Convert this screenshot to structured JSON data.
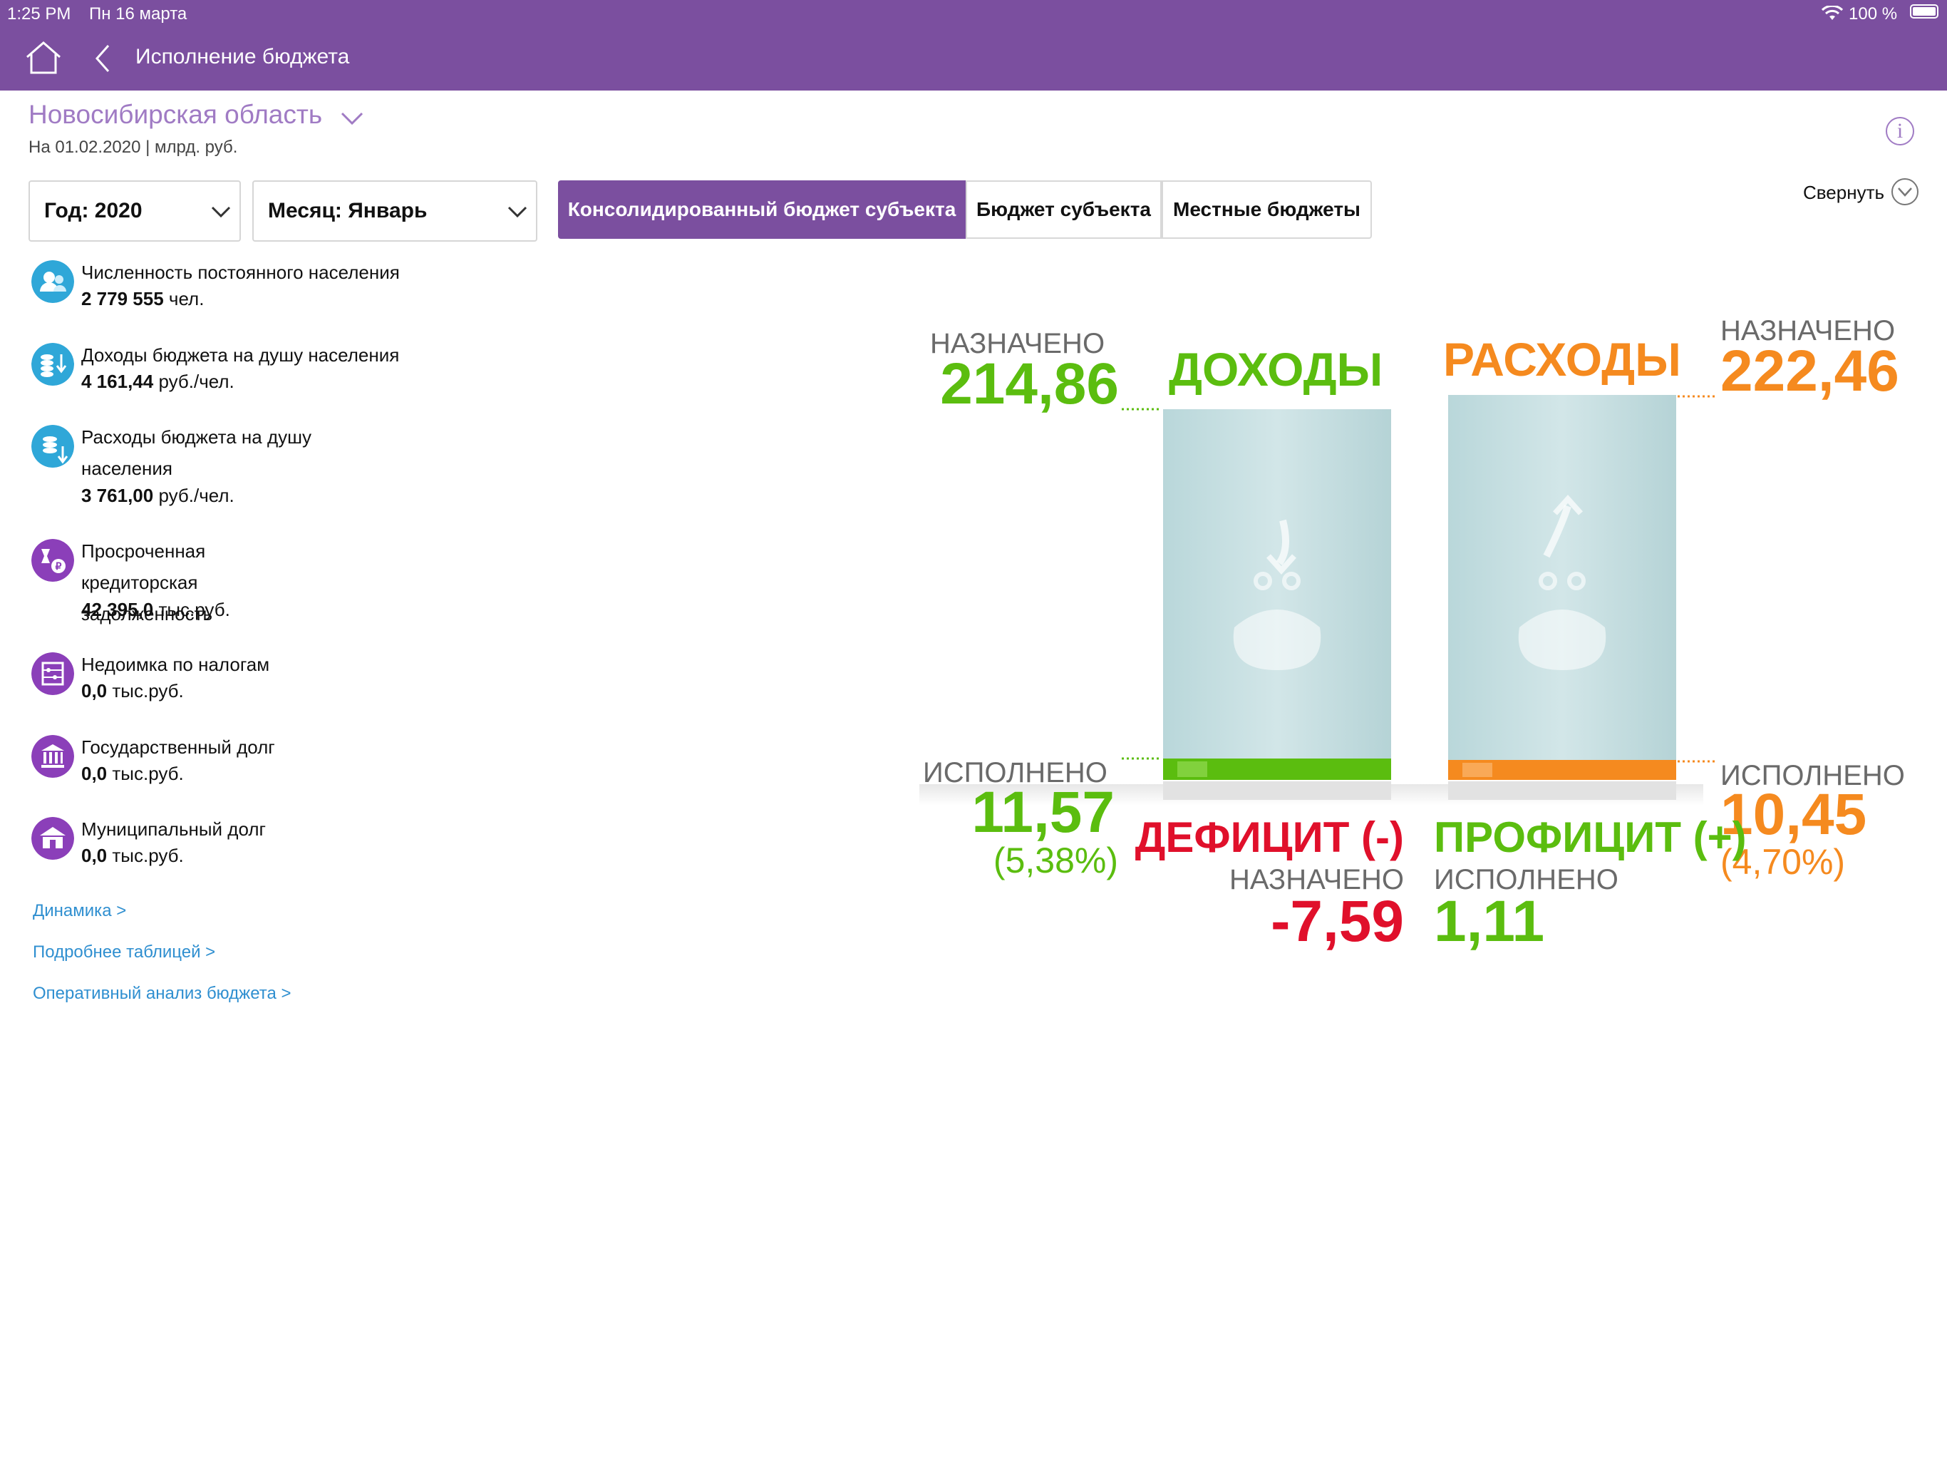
{
  "status_bar": {
    "time": "1:25 PM",
    "date": "Пн 16 марта",
    "battery": "100 %"
  },
  "header": {
    "title": "Исполнение бюджета",
    "home_icon": "home-icon",
    "back_icon": "chevron-left-icon"
  },
  "region": {
    "name": "Новосибирская область",
    "subtitle": "На 01.02.2020 | млрд. руб."
  },
  "filters": {
    "year": "Год: 2020",
    "month": "Месяц: Январь"
  },
  "tabs": [
    "Консолидированный бюджет субъекта",
    "Бюджет субъекта",
    "Местные бюджеты"
  ],
  "collapse_label": "Свернуть",
  "indicators": [
    {
      "label": "Численность постоянного населения",
      "value": "2 779 555",
      "unit": " чел.",
      "icon": "people-icon",
      "color": "#2fa7d8"
    },
    {
      "label": "Доходы бюджета на душу населения",
      "value": "4 161,44",
      "unit": " руб./чел.",
      "icon": "coins-in-icon",
      "color": "#2fa7d8"
    },
    {
      "label": "Расходы бюджета на душу населения",
      "value": "3 761,00",
      "unit": " руб./чел.",
      "icon": "coins-out-icon",
      "color": "#2fa7d8"
    },
    {
      "label": "Просроченная кредиторская задолженность",
      "value": "42 395,0",
      "unit": " тыс.руб.",
      "icon": "overdue-icon",
      "color": "#8b3fb9"
    },
    {
      "label": "Недоимка по налогам",
      "value": "0,0",
      "unit": " тыс.руб.",
      "icon": "abacus-icon",
      "color": "#8b3fb9"
    },
    {
      "label": "Государственный долг",
      "value": "0,0",
      "unit": " тыс.руб.",
      "icon": "government-icon",
      "color": "#8b3fb9"
    },
    {
      "label": "Муниципальный долг",
      "value": "0,0",
      "unit": " тыс.руб.",
      "icon": "municipal-icon",
      "color": "#8b3fb9"
    }
  ],
  "links": [
    "Динамика >",
    "Подробнее таблицей >",
    "Оперативный анализ бюджета >"
  ],
  "budget": {
    "income": {
      "title": "ДОХОДЫ",
      "planned_label": "НАЗНАЧЕНО",
      "planned": "214,86",
      "done_label": "ИСПОЛНЕНО",
      "done": "11,57",
      "percent": "(5,38%)"
    },
    "expense": {
      "title": "РАСХОДЫ",
      "planned_label": "НАЗНАЧЕНО",
      "planned": "222,46",
      "done_label": "ИСПОЛНЕНО",
      "done": "10,45",
      "percent": "(4,70%)"
    },
    "deficit": {
      "title": "ДЕФИЦИТ (-)",
      "label": "НАЗНАЧЕНО",
      "value": "-7,59"
    },
    "surplus": {
      "title": "ПРОФИЦИТ (+)",
      "label": "ИСПОЛНЕНО",
      "value": "1,11"
    }
  },
  "chart_data": {
    "type": "bar",
    "categories": [
      "ДОХОДЫ",
      "РАСХОДЫ"
    ],
    "series": [
      {
        "name": "НАЗНАЧЕНО",
        "values": [
          214.86,
          222.46
        ]
      },
      {
        "name": "ИСПОЛНЕНО",
        "values": [
          11.57,
          10.45
        ]
      }
    ],
    "percent_executed": [
      5.38,
      4.7
    ],
    "deficit_planned": -7.59,
    "surplus_executed": 1.11,
    "colors": {
      "income": "#5bbd0f",
      "expense": "#f58a1f",
      "deficit": "#e0102b"
    }
  }
}
